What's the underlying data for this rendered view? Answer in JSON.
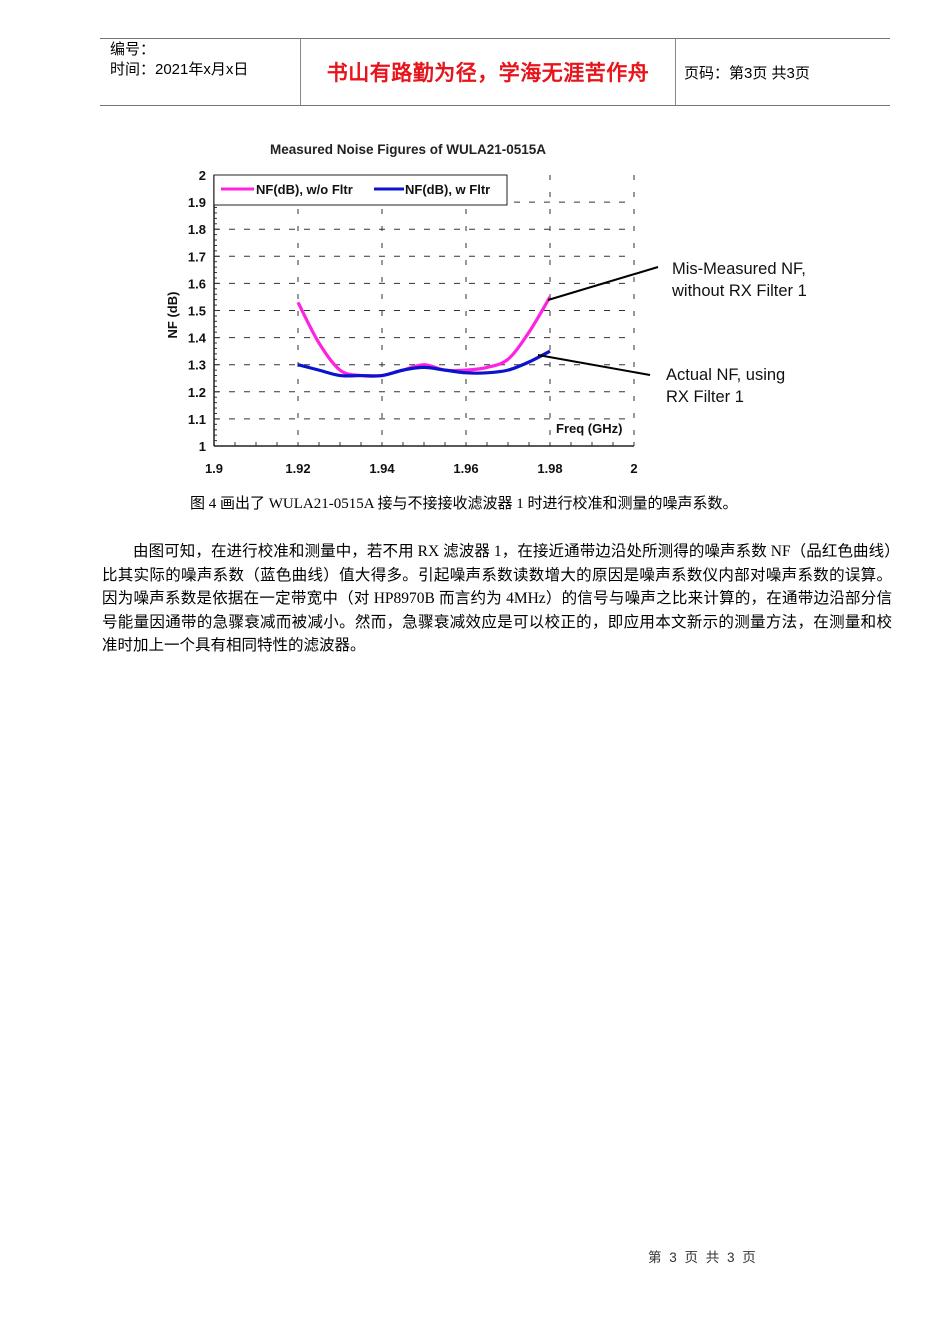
{
  "header": {
    "serial_label": "编号：",
    "date_label": "时间：2021年x月x日",
    "motto": "书山有路勤为径，学海无涯苦作舟",
    "page_label": "页码：第3页  共3页",
    "motto_color": "#e8141c"
  },
  "chart_data": {
    "type": "line",
    "title": "Measured Noise Figures of WULA21-0515A",
    "xlabel": "Freq (GHz)",
    "ylabel": "NF (dB)",
    "xlim": [
      1.9,
      2.0
    ],
    "ylim": [
      1.0,
      2.0
    ],
    "x_ticks": [
      "1.9",
      "1.92",
      "1.94",
      "1.96",
      "1.98",
      "2"
    ],
    "y_ticks": [
      "1",
      "1.1",
      "1.2",
      "1.3",
      "1.4",
      "1.5",
      "1.6",
      "1.7",
      "1.8",
      "1.9",
      "2"
    ],
    "grid": true,
    "legend_position": "top-left",
    "x": [
      1.92,
      1.925,
      1.93,
      1.935,
      1.94,
      1.945,
      1.95,
      1.955,
      1.96,
      1.965,
      1.97,
      1.975,
      1.98
    ],
    "series": [
      {
        "name": "NF(dB), w/o Fltr",
        "color": "#ff22e0",
        "values": [
          1.53,
          1.38,
          1.28,
          1.26,
          1.26,
          1.28,
          1.3,
          1.28,
          1.28,
          1.29,
          1.32,
          1.42,
          1.55
        ]
      },
      {
        "name": "NF(dB), w Fltr",
        "color": "#0a14cc",
        "values": [
          1.3,
          1.28,
          1.26,
          1.26,
          1.26,
          1.28,
          1.29,
          1.28,
          1.27,
          1.27,
          1.28,
          1.31,
          1.35
        ]
      }
    ],
    "annotations": [
      {
        "line1": "Mis-Measured NF,",
        "line2": "without RX Filter 1"
      },
      {
        "line1": "Actual NF, using",
        "line2": "RX Filter 1"
      }
    ]
  },
  "caption": "图 4 画出了 WULA21-0515A 接与不接接收滤波器 1 时进行校准和测量的噪声系数。",
  "body_paragraph": "由图可知，在进行校准和测量中，若不用 RX 滤波器 1，在接近通带边沿处所测得的噪声系数 NF（品红色曲线）比其实际的噪声系数（蓝色曲线）值大得多。引起噪声系数读数增大的原因是噪声系数仪内部对噪声系数的误算。因为噪声系数是依据在一定带宽中（对 HP8970B 而言约为 4MHz）的信号与噪声之比来计算的，在通带边沿部分信号能量因通带的急骤衰减而被减小。然而，急骤衰减效应是可以校正的，即应用本文新示的测量方法，在测量和校准时加上一个具有相同特性的滤波器。",
  "footer": "第 3 页 共 3 页"
}
